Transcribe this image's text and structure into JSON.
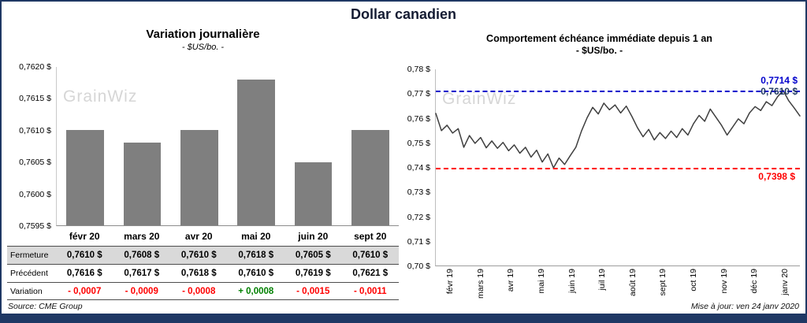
{
  "page": {
    "title": "Dollar canadien",
    "source": "Source: CME Group",
    "updated": "Mise à jour: ven 24 janv 2020",
    "accent": "#1F3864"
  },
  "watermark": "GrainWiz",
  "colors": {
    "bar": "#7F7F7F",
    "line": "#3F3F3F",
    "high": "#0000CC",
    "low": "#FF0000",
    "last": "#1F3864",
    "positive": "#008000",
    "negative": "#FF0000",
    "shade": "#D9D9D9"
  },
  "left": {
    "title": "Variation journalière",
    "subtitle": "- $US/bo. -",
    "table": {
      "rows": [
        {
          "label": "Fermeture",
          "values": [
            "0,7610 $",
            "0,7608 $",
            "0,7610 $",
            "0,7618 $",
            "0,7605 $",
            "0,7610 $"
          ]
        },
        {
          "label": "Précédent",
          "values": [
            "0,7616 $",
            "0,7617 $",
            "0,7618 $",
            "0,7610 $",
            "0,7619 $",
            "0,7621 $"
          ]
        },
        {
          "label": "Variation",
          "values": [
            "- 0,0007",
            "- 0,0009",
            "- 0,0008",
            "+ 0,0008",
            "- 0,0015",
            "- 0,0011"
          ]
        }
      ]
    }
  },
  "right": {
    "title": "Comportement échéance immédiate depuis 1 an",
    "subtitle": "- $US/bo. -",
    "high_label": "0,7714 $",
    "last_label": "0,7610 $",
    "low_label": "0,7398 $"
  },
  "chart_data": [
    {
      "type": "bar",
      "title": "Variation journalière",
      "subtitle": "- $US/bo. -",
      "categories": [
        "févr 20",
        "mars 20",
        "avr 20",
        "mai 20",
        "juin 20",
        "sept 20"
      ],
      "values": [
        0.761,
        0.7608,
        0.761,
        0.7618,
        0.7605,
        0.761
      ],
      "ylim": [
        0.7595,
        0.762
      ],
      "yticks": [
        "0,7620 $",
        "0,7615 $",
        "0,7610 $",
        "0,7605 $",
        "0,7600 $",
        "0,7595 $"
      ],
      "table": {
        "fermeture": [
          0.761,
          0.7608,
          0.761,
          0.7618,
          0.7605,
          0.761
        ],
        "precedent": [
          0.7616,
          0.7617,
          0.7618,
          0.761,
          0.7619,
          0.7621
        ],
        "variation": [
          -0.0007,
          -0.0009,
          -0.0008,
          0.0008,
          -0.0015,
          -0.0011
        ]
      }
    },
    {
      "type": "line",
      "title": "Comportement échéance immédiate depuis 1 an",
      "subtitle": "- $US/bo. -",
      "x_ticks": [
        "févr 19",
        "mars 19",
        "avr 19",
        "mai 19",
        "juin 19",
        "juil 19",
        "août 19",
        "sept 19",
        "oct 19",
        "nov 19",
        "déc 19",
        "janv 20"
      ],
      "ylim": [
        0.7,
        0.78
      ],
      "yticks": [
        "0,78 $",
        "0,77 $",
        "0,76 $",
        "0,75 $",
        "0,74 $",
        "0,73 $",
        "0,72 $",
        "0,71 $",
        "0,70 $"
      ],
      "high": 0.7714,
      "low": 0.7398,
      "last": 0.761,
      "values": [
        0.762,
        0.755,
        0.7572,
        0.754,
        0.7558,
        0.7482,
        0.753,
        0.7498,
        0.7522,
        0.748,
        0.7508,
        0.7478,
        0.7502,
        0.7468,
        0.7492,
        0.7458,
        0.7482,
        0.7442,
        0.747,
        0.7422,
        0.7455,
        0.7398,
        0.7438,
        0.7412,
        0.7448,
        0.7482,
        0.7548,
        0.7602,
        0.7645,
        0.7618,
        0.7662,
        0.7635,
        0.7655,
        0.7622,
        0.765,
        0.7608,
        0.7562,
        0.7525,
        0.7555,
        0.7512,
        0.7542,
        0.7518,
        0.7548,
        0.7522,
        0.7558,
        0.7532,
        0.7578,
        0.7612,
        0.7588,
        0.7638,
        0.7605,
        0.7572,
        0.7532,
        0.7565,
        0.7598,
        0.7578,
        0.7622,
        0.7648,
        0.7632,
        0.7668,
        0.7652,
        0.7688,
        0.7714,
        0.7672,
        0.7642,
        0.761
      ]
    }
  ]
}
